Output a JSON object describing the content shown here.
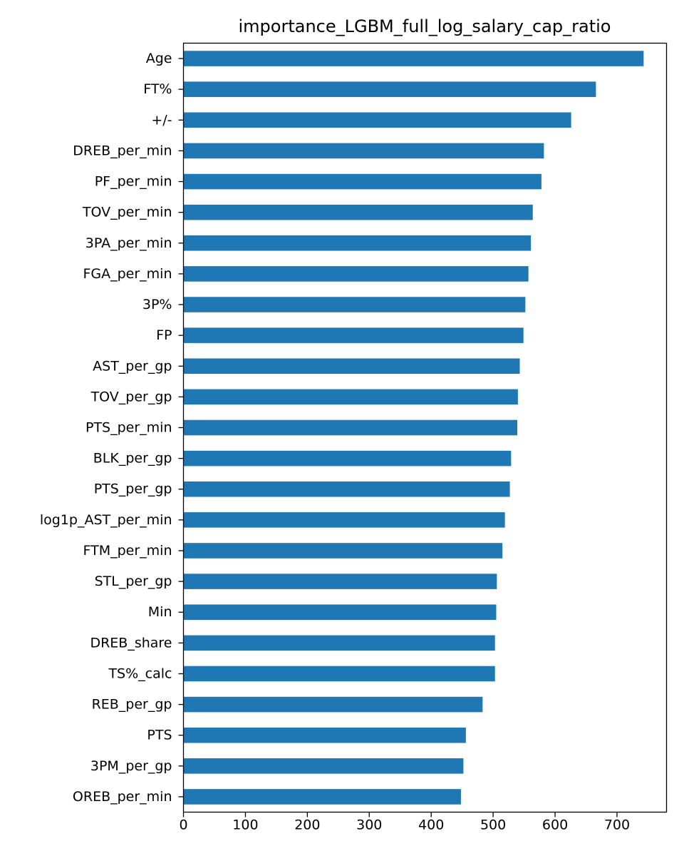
{
  "chart_data": {
    "type": "bar",
    "orientation": "horizontal",
    "title": "importance_LGBM_full_log_salary_cap_ratio",
    "xlabel": "",
    "ylabel": "",
    "xlim": [
      0,
      780
    ],
    "xticks": [
      0,
      100,
      200,
      300,
      400,
      500,
      600,
      700
    ],
    "grid": false,
    "legend": "none",
    "bar_color": "#1f77b4",
    "categories": [
      "Age",
      "FT%",
      "+/-",
      "DREB_per_min",
      "PF_per_min",
      "TOV_per_min",
      "3PA_per_min",
      "FGA_per_min",
      "3P%",
      "FP",
      "AST_per_gp",
      "TOV_per_gp",
      "PTS_per_min",
      "BLK_per_gp",
      "PTS_per_gp",
      "log1p_AST_per_min",
      "FTM_per_min",
      "STL_per_gp",
      "Min",
      "DREB_share",
      "TS%_calc",
      "REB_per_gp",
      "PTS",
      "3PM_per_gp",
      "OREB_per_min"
    ],
    "values": [
      743,
      666,
      626,
      582,
      578,
      564,
      561,
      557,
      552,
      549,
      543,
      540,
      539,
      529,
      527,
      519,
      515,
      506,
      505,
      503,
      503,
      483,
      456,
      452,
      448
    ]
  }
}
